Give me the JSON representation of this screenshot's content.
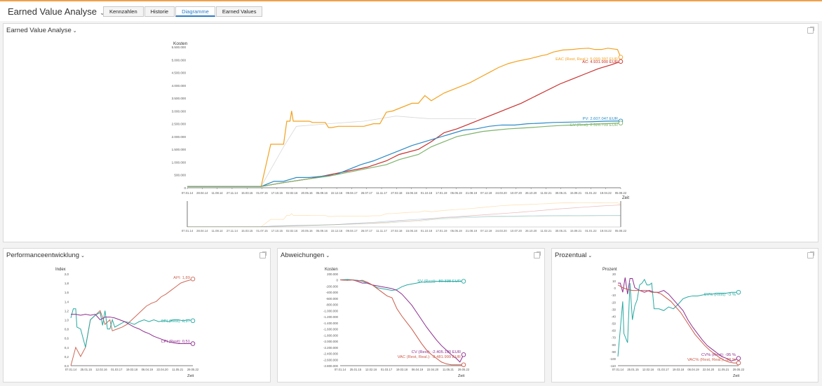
{
  "header": {
    "title": "Earned Value Analyse",
    "tabs": [
      "Kennzahlen",
      "Historie",
      "Diagramme",
      "Earned Values"
    ],
    "active_tab": "Diagramme"
  },
  "colors": {
    "accent": "#2a7bc4",
    "topline": "#f0a04b",
    "eac": "#f3a21f",
    "ac": "#c8302e",
    "pv": "#2b8ac6",
    "ev": "#7db36a",
    "cv": "#8e2d8e",
    "sv": "#27a9a2",
    "vac": "#cc5a4a",
    "api": "#cc6a58"
  },
  "panels": {
    "main": {
      "title": "Earned Value Analyse"
    },
    "perf": {
      "title": "Performanceentwicklung"
    },
    "dev": {
      "title": "Abweichungen"
    },
    "pct": {
      "title": "Prozentual"
    }
  },
  "chart_data": [
    {
      "type": "line",
      "ylabel": "Kosten",
      "xlabel": "Zeit",
      "ylim": [
        0,
        5500000
      ],
      "y_ticks": [
        "0",
        "500.000",
        "1.000.000",
        "1.500.000",
        "2.000.000",
        "2.500.000",
        "3.000.000",
        "3.500.000",
        "4.000.000",
        "4.500.000",
        "5.000.000",
        "5.500.000"
      ],
      "x_ticks": [
        "07.01.14",
        "28.04.14",
        "11.08.14",
        "27.11.14",
        "15.03.15",
        "01.07.15",
        "17.10.15",
        "02.02.16",
        "20.05.16",
        "05.09.16",
        "22.12.16",
        "09.04.17",
        "26.07.17",
        "11.11.17",
        "27.02.18",
        "15.06.18",
        "01.10.18",
        "17.01.19",
        "05.05.19",
        "21.08.19",
        "07.12.19",
        "24.03.20",
        "10.07.20",
        "26.10.20",
        "11.02.21",
        "30.05.21",
        "15.09.21",
        "01.01.22",
        "19.04.22",
        "05.08.22"
      ],
      "series": [
        {
          "label": "EAC (Rest, Real.): 5.099.397 EUR",
          "color": "#f3a21f",
          "points": [
            [
              0,
              50000
            ],
            [
              0.18,
              50000
            ],
            [
              0.23,
              50000
            ],
            [
              0.26,
              1700000
            ],
            [
              0.3,
              1700000
            ],
            [
              0.31,
              2600000
            ],
            [
              0.32,
              2600000
            ],
            [
              0.325,
              3000000
            ],
            [
              0.33,
              2600000
            ],
            [
              0.36,
              2600000
            ],
            [
              0.38,
              2600000
            ],
            [
              0.39,
              2550000
            ],
            [
              0.43,
              2550000
            ],
            [
              0.44,
              2350000
            ],
            [
              0.45,
              2350000
            ],
            [
              0.47,
              2400000
            ],
            [
              0.55,
              2400000
            ],
            [
              0.58,
              2500000
            ],
            [
              0.6,
              2500000
            ],
            [
              0.62,
              2950000
            ],
            [
              0.64,
              3000000
            ],
            [
              0.7,
              3300000
            ],
            [
              0.72,
              3300000
            ],
            [
              0.74,
              3600000
            ],
            [
              0.76,
              3400000
            ],
            [
              0.8,
              3700000
            ],
            [
              0.84,
              3900000
            ],
            [
              0.88,
              4100000
            ],
            [
              0.91,
              4300000
            ],
            [
              0.94,
              4500000
            ],
            [
              0.97,
              4700000
            ],
            [
              1,
              4850000
            ],
            [
              1.03,
              4950000
            ],
            [
              1.07,
              5050000
            ],
            [
              1.1,
              5150000
            ],
            [
              1.12,
              5200000
            ],
            [
              1.14,
              5300000
            ],
            [
              1.17,
              5380000
            ],
            [
              1.2,
              5400000
            ],
            [
              1.22,
              5430000
            ],
            [
              1.25,
              5450000
            ],
            [
              1.27,
              5400000
            ],
            [
              1.29,
              5400000
            ],
            [
              1.31,
              5450000
            ],
            [
              1.34,
              5400000
            ],
            [
              1.35,
              5099397
            ]
          ],
          "end_x": 1.35
        },
        {
          "label": "AC: 4.931.900 EUR",
          "color": "#c8302e",
          "points": [
            [
              0,
              50000
            ],
            [
              0.23,
              50000
            ],
            [
              0.3,
              200000
            ],
            [
              0.38,
              350000
            ],
            [
              0.44,
              500000
            ],
            [
              0.5,
              650000
            ],
            [
              0.56,
              800000
            ],
            [
              0.62,
              1050000
            ],
            [
              0.66,
              1300000
            ],
            [
              0.72,
              1500000
            ],
            [
              0.76,
              1800000
            ],
            [
              0.8,
              2150000
            ],
            [
              0.84,
              2300000
            ],
            [
              0.88,
              2500000
            ],
            [
              0.92,
              2700000
            ],
            [
              0.96,
              2900000
            ],
            [
              1,
              3100000
            ],
            [
              1.04,
              3300000
            ],
            [
              1.08,
              3550000
            ],
            [
              1.12,
              3800000
            ],
            [
              1.16,
              4050000
            ],
            [
              1.2,
              4250000
            ],
            [
              1.24,
              4450000
            ],
            [
              1.28,
              4650000
            ],
            [
              1.32,
              4800000
            ],
            [
              1.35,
              4931900
            ]
          ],
          "end_x": 1.35
        },
        {
          "label": "PV: 2.607.047 EUR",
          "color": "#2b8ac6",
          "points": [
            [
              0,
              50000
            ],
            [
              0.23,
              50000
            ],
            [
              0.27,
              250000
            ],
            [
              0.3,
              250000
            ],
            [
              0.34,
              400000
            ],
            [
              0.38,
              400000
            ],
            [
              0.42,
              450000
            ],
            [
              0.46,
              500000
            ],
            [
              0.5,
              700000
            ],
            [
              0.54,
              900000
            ],
            [
              0.58,
              1050000
            ],
            [
              0.62,
              1250000
            ],
            [
              0.66,
              1450000
            ],
            [
              0.7,
              1650000
            ],
            [
              0.74,
              1800000
            ],
            [
              0.78,
              1950000
            ],
            [
              0.82,
              2100000
            ],
            [
              0.86,
              2250000
            ],
            [
              0.9,
              2300000
            ],
            [
              0.94,
              2400000
            ],
            [
              0.98,
              2450000
            ],
            [
              1.02,
              2450000
            ],
            [
              1.06,
              2500000
            ],
            [
              1.1,
              2520000
            ],
            [
              1.14,
              2550000
            ],
            [
              1.18,
              2560000
            ],
            [
              1.22,
              2570000
            ],
            [
              1.26,
              2580000
            ],
            [
              1.3,
              2600000
            ],
            [
              1.35,
              2607047
            ]
          ],
          "end_x": 1.35
        },
        {
          "label": "EV (Rest): 2.526.709 EUR",
          "color": "#7db36a",
          "points": [
            [
              0,
              50000
            ],
            [
              0.23,
              50000
            ],
            [
              0.3,
              200000
            ],
            [
              0.38,
              350000
            ],
            [
              0.44,
              450000
            ],
            [
              0.5,
              600000
            ],
            [
              0.56,
              750000
            ],
            [
              0.62,
              900000
            ],
            [
              0.66,
              1100000
            ],
            [
              0.72,
              1300000
            ],
            [
              0.76,
              1600000
            ],
            [
              0.8,
              1800000
            ],
            [
              0.84,
              2000000
            ],
            [
              0.88,
              2100000
            ],
            [
              0.92,
              2200000
            ],
            [
              0.96,
              2250000
            ],
            [
              1,
              2300000
            ],
            [
              1.04,
              2330000
            ],
            [
              1.08,
              2360000
            ],
            [
              1.12,
              2400000
            ],
            [
              1.16,
              2430000
            ],
            [
              1.2,
              2450000
            ],
            [
              1.24,
              2470000
            ],
            [
              1.28,
              2490000
            ],
            [
              1.32,
              2510000
            ],
            [
              1.35,
              2526709
            ]
          ],
          "end_x": 1.35
        }
      ]
    },
    {
      "type": "line",
      "ylabel": "Index",
      "xlabel": "Zeit",
      "ylim": [
        0,
        2
      ],
      "y_ticks": [
        "0,0",
        "0,2",
        "0,4",
        "0,6",
        "0,8",
        "1,0",
        "1,2",
        "1,4",
        "1,6",
        "1,8",
        "2,0"
      ],
      "x_ticks": [
        "07.01.14",
        "25.01.15",
        "12.02.16",
        "01.03.17",
        "19.03.18",
        "06.04.19",
        "22.04.20",
        "11.05.21",
        "29.05.22"
      ],
      "series": [
        {
          "label": "API: 1,89",
          "color": "#cc6a58"
        },
        {
          "label": "SPI (Rest): 0,97",
          "color": "#27a9a2"
        },
        {
          "label": "CPI (Rest): 0,51",
          "color": "#8e2d8e"
        }
      ]
    },
    {
      "type": "line",
      "ylabel": "Kosten",
      "xlabel": "Zeit",
      "y_ticks": [
        "200.000",
        "0",
        "-200.000",
        "-400.000",
        "-600.000",
        "-800.000",
        "-1.000.000",
        "-1.200.000",
        "-1.400.000",
        "-1.600.000",
        "-1.800.000",
        "-2.000.000",
        "-2.200.000",
        "-2.400.000",
        "-2.600.000",
        "-2.800.000"
      ],
      "x_ticks": [
        "07.01.14",
        "25.01.15",
        "12.02.16",
        "01.03.17",
        "19.03.18",
        "06.04.19",
        "22.04.20",
        "11.05.21",
        "29.05.22"
      ],
      "series": [
        {
          "label": "SV (Rest): -80.338 EUR",
          "color": "#27a9a2"
        },
        {
          "label": "CV (Rest): -2.405.190 EUR",
          "color": "#8e2d8e"
        },
        {
          "label": "VAC (Rest, Real.): -2.481.999 EUR",
          "color": "#cc5a4a"
        }
      ]
    },
    {
      "type": "line",
      "ylabel": "Prozent",
      "xlabel": "Zeit",
      "y_ticks": [
        "20",
        "10",
        "0",
        "-10",
        "-20",
        "-30",
        "-40",
        "-50",
        "-60",
        "-70",
        "-80",
        "-90",
        "-100",
        "-110"
      ],
      "x_ticks": [
        "07.01.14",
        "25.01.15",
        "12.02.16",
        "01.03.17",
        "19.03.18",
        "06.04.19",
        "22.04.20",
        "11.05.21",
        "29.05.22"
      ],
      "series": [
        {
          "label": "SV% (Rest): -3 %",
          "color": "#27a9a2"
        },
        {
          "label": "CV% (Rest): -95 %",
          "color": "#8e2d8e"
        },
        {
          "label": "VAC% (Rest, Real.): -98 %",
          "color": "#cc5a4a"
        }
      ]
    }
  ]
}
